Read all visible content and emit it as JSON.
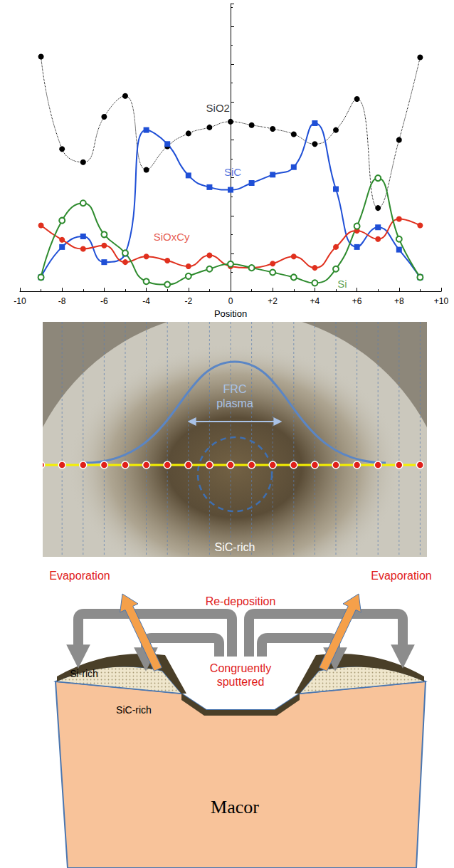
{
  "chart_data": {
    "type": "line",
    "xlabel": "Position",
    "x": [
      -9,
      -8,
      -7,
      -6,
      -5,
      -4,
      -3,
      -2,
      -1,
      0,
      1,
      2,
      3,
      4,
      5,
      6,
      7,
      8,
      9
    ],
    "series": [
      {
        "name": "SiO2",
        "color": "#000000",
        "marker": "circle",
        "line_style": "dotted",
        "values": [
          6.2,
          3.76,
          3.41,
          4.61,
          5.16,
          3.21,
          3.83,
          4.17,
          4.33,
          4.48,
          4.39,
          4.29,
          4.15,
          3.89,
          4.26,
          5.08,
          2.2,
          4.0,
          6.18
        ]
      },
      {
        "name": "SiC",
        "color": "#1f4fd6",
        "marker": "square",
        "line_style": "solid",
        "values": [
          0.37,
          1.17,
          1.45,
          0.77,
          0.99,
          4.26,
          3.89,
          3.06,
          2.75,
          2.68,
          2.86,
          3.08,
          3.28,
          4.44,
          2.7,
          1.17,
          1.69,
          1.1,
          0.37
        ]
      },
      {
        "name": "SiOxCy",
        "color": "#e0301e",
        "marker": "circle",
        "line_style": "solid",
        "values": [
          1.74,
          1.36,
          1.12,
          1.21,
          0.77,
          0.92,
          0.81,
          0.66,
          0.95,
          0.66,
          0.62,
          0.73,
          0.92,
          0.62,
          1.17,
          1.6,
          1.38,
          1.91,
          1.74
        ]
      },
      {
        "name": "Si",
        "color": "#2e8b2e",
        "marker": "open_circle",
        "line_style": "solid",
        "values": [
          0.37,
          1.87,
          2.33,
          1.5,
          1.01,
          0.26,
          0.18,
          0.4,
          0.59,
          0.72,
          0.62,
          0.5,
          0.37,
          0.22,
          0.59,
          1.72,
          2.99,
          1.38,
          0.37
        ]
      }
    ],
    "annotations": [
      {
        "text": "SiO2",
        "x": -0.6,
        "y": 4.85,
        "color": "#000000"
      },
      {
        "text": "SiC",
        "x": 0.1,
        "y": 3.15,
        "color": "#1f4fd6"
      },
      {
        "text": "SiOxCy",
        "x": -2.8,
        "y": 1.45,
        "color": "#e0301e"
      },
      {
        "text": "Si",
        "x": 5.3,
        "y": 0.2,
        "color": "#2e8b2e"
      }
    ],
    "xlim": [
      -10,
      10
    ],
    "xticks": [
      -10,
      -8,
      -6,
      -4,
      -2,
      0,
      {
        "value": 2,
        "label": "+2"
      },
      {
        "value": 4,
        "label": "+4"
      },
      {
        "value": 6,
        "label": "+6"
      },
      {
        "value": 8,
        "label": "+8"
      },
      {
        "value": 10,
        "label": "+10"
      }
    ],
    "ylim": [
      0,
      7.6
    ],
    "yticks": [
      0,
      1,
      2,
      3,
      4,
      5,
      6,
      7
    ],
    "tick_labels": "x",
    "grid": false
  },
  "photo": {
    "plasma_label": "FRC plasma",
    "region_label": "SiC-rich"
  },
  "diagram": {
    "evaporation": [
      "Evaporation",
      "Evaporation"
    ],
    "redeposition": "Re-deposition",
    "sputtered": "Congruently sputtered",
    "si_rich": "Si-rich",
    "sic_rich": "SiC-rich",
    "substrate": "Macor"
  }
}
